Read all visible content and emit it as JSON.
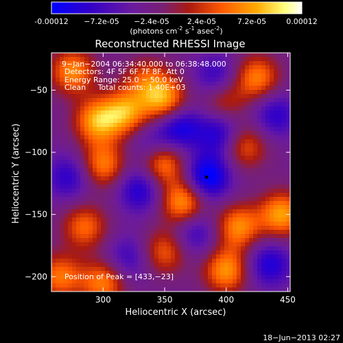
{
  "colorbar": {
    "ticks": [
      "-0.00012",
      "−7.2e-05",
      "−2.4e-05",
      "2.4e-05",
      "7.2e-05",
      "0.00012"
    ],
    "tick_values": [
      -0.00012,
      -7.2e-05,
      -2.4e-05,
      2.4e-05,
      7.2e-05,
      0.00012
    ],
    "range": [
      -0.00012,
      0.00012
    ],
    "unit_main": "(photons cm",
    "unit_exp1": "-2",
    "unit_mid": " s",
    "unit_exp2": "-1",
    "unit_end": " asec",
    "unit_exp3": "-2",
    "unit_close": ")",
    "colors": [
      "#0000ff",
      "#3200c8",
      "#6a1aa0",
      "#8a2a5a",
      "#cc2200",
      "#ff5a00",
      "#ffaa00",
      "#ffff7a",
      "#ffffff"
    ]
  },
  "chart_data": {
    "type": "heatmap",
    "title": "Reconstructed RHESSI Image",
    "xlabel": "Heliocentric X (arcsec)",
    "ylabel": "Heliocentric Y (arcsec)",
    "xlim": [
      258,
      452
    ],
    "ylim": [
      -212,
      -20
    ],
    "x_ticks": [
      300,
      350,
      400,
      450
    ],
    "y_ticks": [
      -50,
      -100,
      -150,
      -200
    ],
    "x_tick_labels": [
      "300",
      "350",
      "400",
      "450"
    ],
    "y_tick_labels": [
      "−50",
      "−100",
      "−150",
      "−200"
    ],
    "info_lines": [
      "9−Jan−2004 06:34:40.000 to 06:38:48.000",
      "Detectors: 4F 5F 6F 7F 8F, Att 0",
      "Energy Range: 25.0 − 50.0 keV",
      "Clean     Total counts: 1.40E+03"
    ],
    "peak_text": "Position of Peak = [433,−23]",
    "peak_position": [
      433,
      -23
    ],
    "center_marker": [
      384,
      -120
    ],
    "blobs": [
      {
        "x": 275,
        "y": -35,
        "v": 0.9
      },
      {
        "x": 295,
        "y": -75,
        "v": 1.0
      },
      {
        "x": 272,
        "y": -120,
        "v": -0.6
      },
      {
        "x": 285,
        "y": -160,
        "v": 0.75
      },
      {
        "x": 300,
        "y": -110,
        "v": 0.85
      },
      {
        "x": 318,
        "y": -68,
        "v": 0.95
      },
      {
        "x": 335,
        "y": -42,
        "v": 0.6
      },
      {
        "x": 330,
        "y": -130,
        "v": -0.7
      },
      {
        "x": 340,
        "y": -95,
        "v": -0.5
      },
      {
        "x": 348,
        "y": -108,
        "v": 1.0
      },
      {
        "x": 350,
        "y": -58,
        "v": 1.0
      },
      {
        "x": 362,
        "y": -80,
        "v": -0.8
      },
      {
        "x": 385,
        "y": -120,
        "v": -1.0
      },
      {
        "x": 392,
        "y": -40,
        "v": -0.6
      },
      {
        "x": 395,
        "y": -85,
        "v": -0.7
      },
      {
        "x": 398,
        "y": -58,
        "v": 0.6
      },
      {
        "x": 415,
        "y": -95,
        "v": 0.7
      },
      {
        "x": 425,
        "y": -40,
        "v": 0.85
      },
      {
        "x": 440,
        "y": -70,
        "v": -0.6
      },
      {
        "x": 410,
        "y": -160,
        "v": 0.9
      },
      {
        "x": 375,
        "y": -165,
        "v": -0.55
      },
      {
        "x": 350,
        "y": -180,
        "v": 0.7
      },
      {
        "x": 320,
        "y": -185,
        "v": -0.5
      },
      {
        "x": 300,
        "y": -205,
        "v": 0.85
      },
      {
        "x": 400,
        "y": -195,
        "v": 0.95
      },
      {
        "x": 435,
        "y": -190,
        "v": -0.7
      },
      {
        "x": 445,
        "y": -150,
        "v": 1.0
      },
      {
        "x": 365,
        "y": -140,
        "v": 1.0
      },
      {
        "x": 265,
        "y": -200,
        "v": 0.8
      }
    ]
  },
  "timestamp": "18−Jun−2013 02:27"
}
